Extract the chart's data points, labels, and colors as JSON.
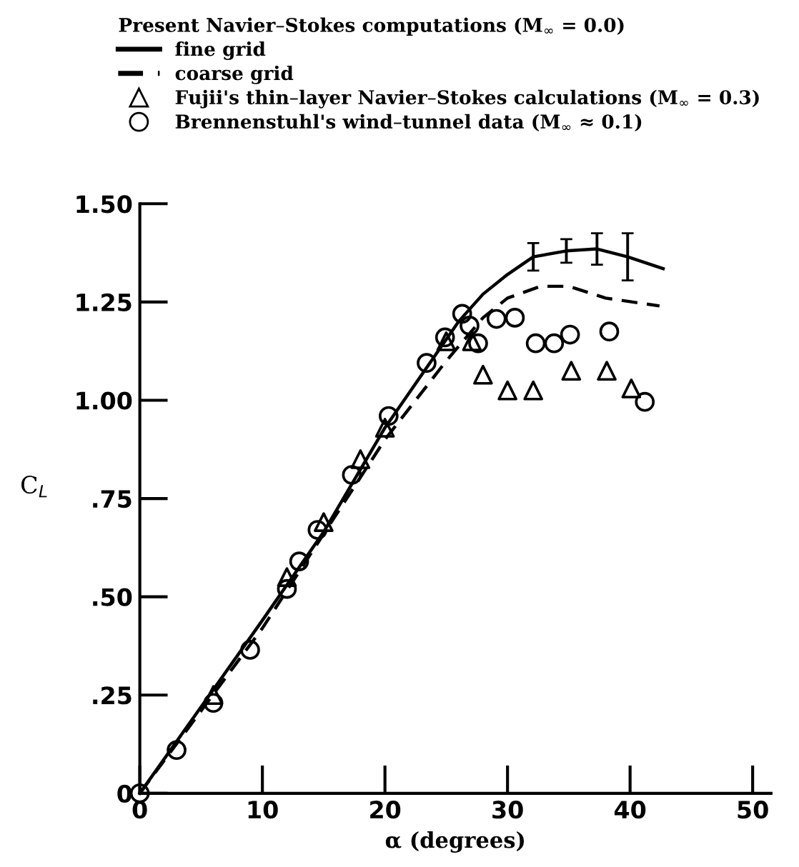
{
  "chart_data": {
    "type": "line",
    "legend_title": "Present Navier–Stokes computations (M$_{∞}$ = 0.0)",
    "xlabel": "α (degrees)",
    "ylabel": "C$_{L}$",
    "xlim": [
      0,
      51.5
    ],
    "ylim": [
      0,
      1.5
    ],
    "xticks": [
      0,
      10,
      20,
      30,
      40,
      50
    ],
    "yticks": [
      0,
      {
        "value": 0.25,
        "label": ".25"
      },
      {
        "value": 0.5,
        "label": ".50"
      },
      {
        "value": 0.75,
        "label": ".75"
      },
      {
        "value": 1.0,
        "label": "1.00"
      },
      {
        "value": 1.25,
        "label": "1.25"
      },
      {
        "value": 1.5,
        "label": "1.50"
      }
    ],
    "legend": "top",
    "grid": false,
    "series": [
      {
        "name": "fine grid",
        "line_style": "solid",
        "marker": "none",
        "color": "#000000",
        "x": [
          0,
          5,
          10,
          15,
          20,
          22,
          24,
          26,
          28,
          30,
          32.1,
          34.8,
          37.3,
          39.8,
          42.7
        ],
        "values": [
          0,
          0.22,
          0.44,
          0.665,
          0.93,
          1.02,
          1.11,
          1.2,
          1.27,
          1.32,
          1.365,
          1.38,
          1.385,
          1.365,
          1.335
        ],
        "errors": [
          null,
          null,
          null,
          null,
          null,
          null,
          null,
          null,
          null,
          null,
          0.035,
          0.03,
          0.04,
          0.06,
          null
        ]
      },
      {
        "name": "coarse grid",
        "line_style": "dashed",
        "marker": "none",
        "color": "#000000",
        "x": [
          0,
          10,
          20,
          25,
          28,
          30,
          32.7,
          35,
          38,
          42.4
        ],
        "values": [
          0,
          0.42,
          0.9,
          1.1,
          1.21,
          1.26,
          1.29,
          1.29,
          1.26,
          1.24
        ]
      },
      {
        "name": "Fujii's thin–layer Navier–Stokes calculations (M$_{∞}$ = 0.3)",
        "type": "scatter",
        "marker": "triangle",
        "color": "#000000",
        "x": [
          6,
          12,
          15,
          18,
          20,
          25,
          27.1,
          28,
          30,
          32.1,
          35.2,
          38.1,
          40.1
        ],
        "values": [
          0.25,
          0.55,
          0.69,
          0.85,
          0.93,
          1.15,
          1.15,
          1.065,
          1.025,
          1.025,
          1.075,
          1.075,
          1.03
        ]
      },
      {
        "name": "Brennenstuhl's wind–tunnel data (M$_{∞}$ ≈ 0.1)",
        "type": "scatter",
        "marker": "circle",
        "color": "#000000",
        "x": [
          0,
          3,
          6,
          9,
          12,
          13,
          14.5,
          17.3,
          20.3,
          23.4,
          24.9,
          26.3,
          26.9,
          27.6,
          29.1,
          30.6,
          32.3,
          33.8,
          35.1,
          38.3,
          41.2
        ],
        "values": [
          0,
          0.11,
          0.23,
          0.365,
          0.52,
          0.59,
          0.67,
          0.81,
          0.96,
          1.095,
          1.16,
          1.22,
          1.19,
          1.145,
          1.207,
          1.21,
          1.145,
          1.145,
          1.167,
          1.175,
          0.996
        ]
      }
    ]
  }
}
